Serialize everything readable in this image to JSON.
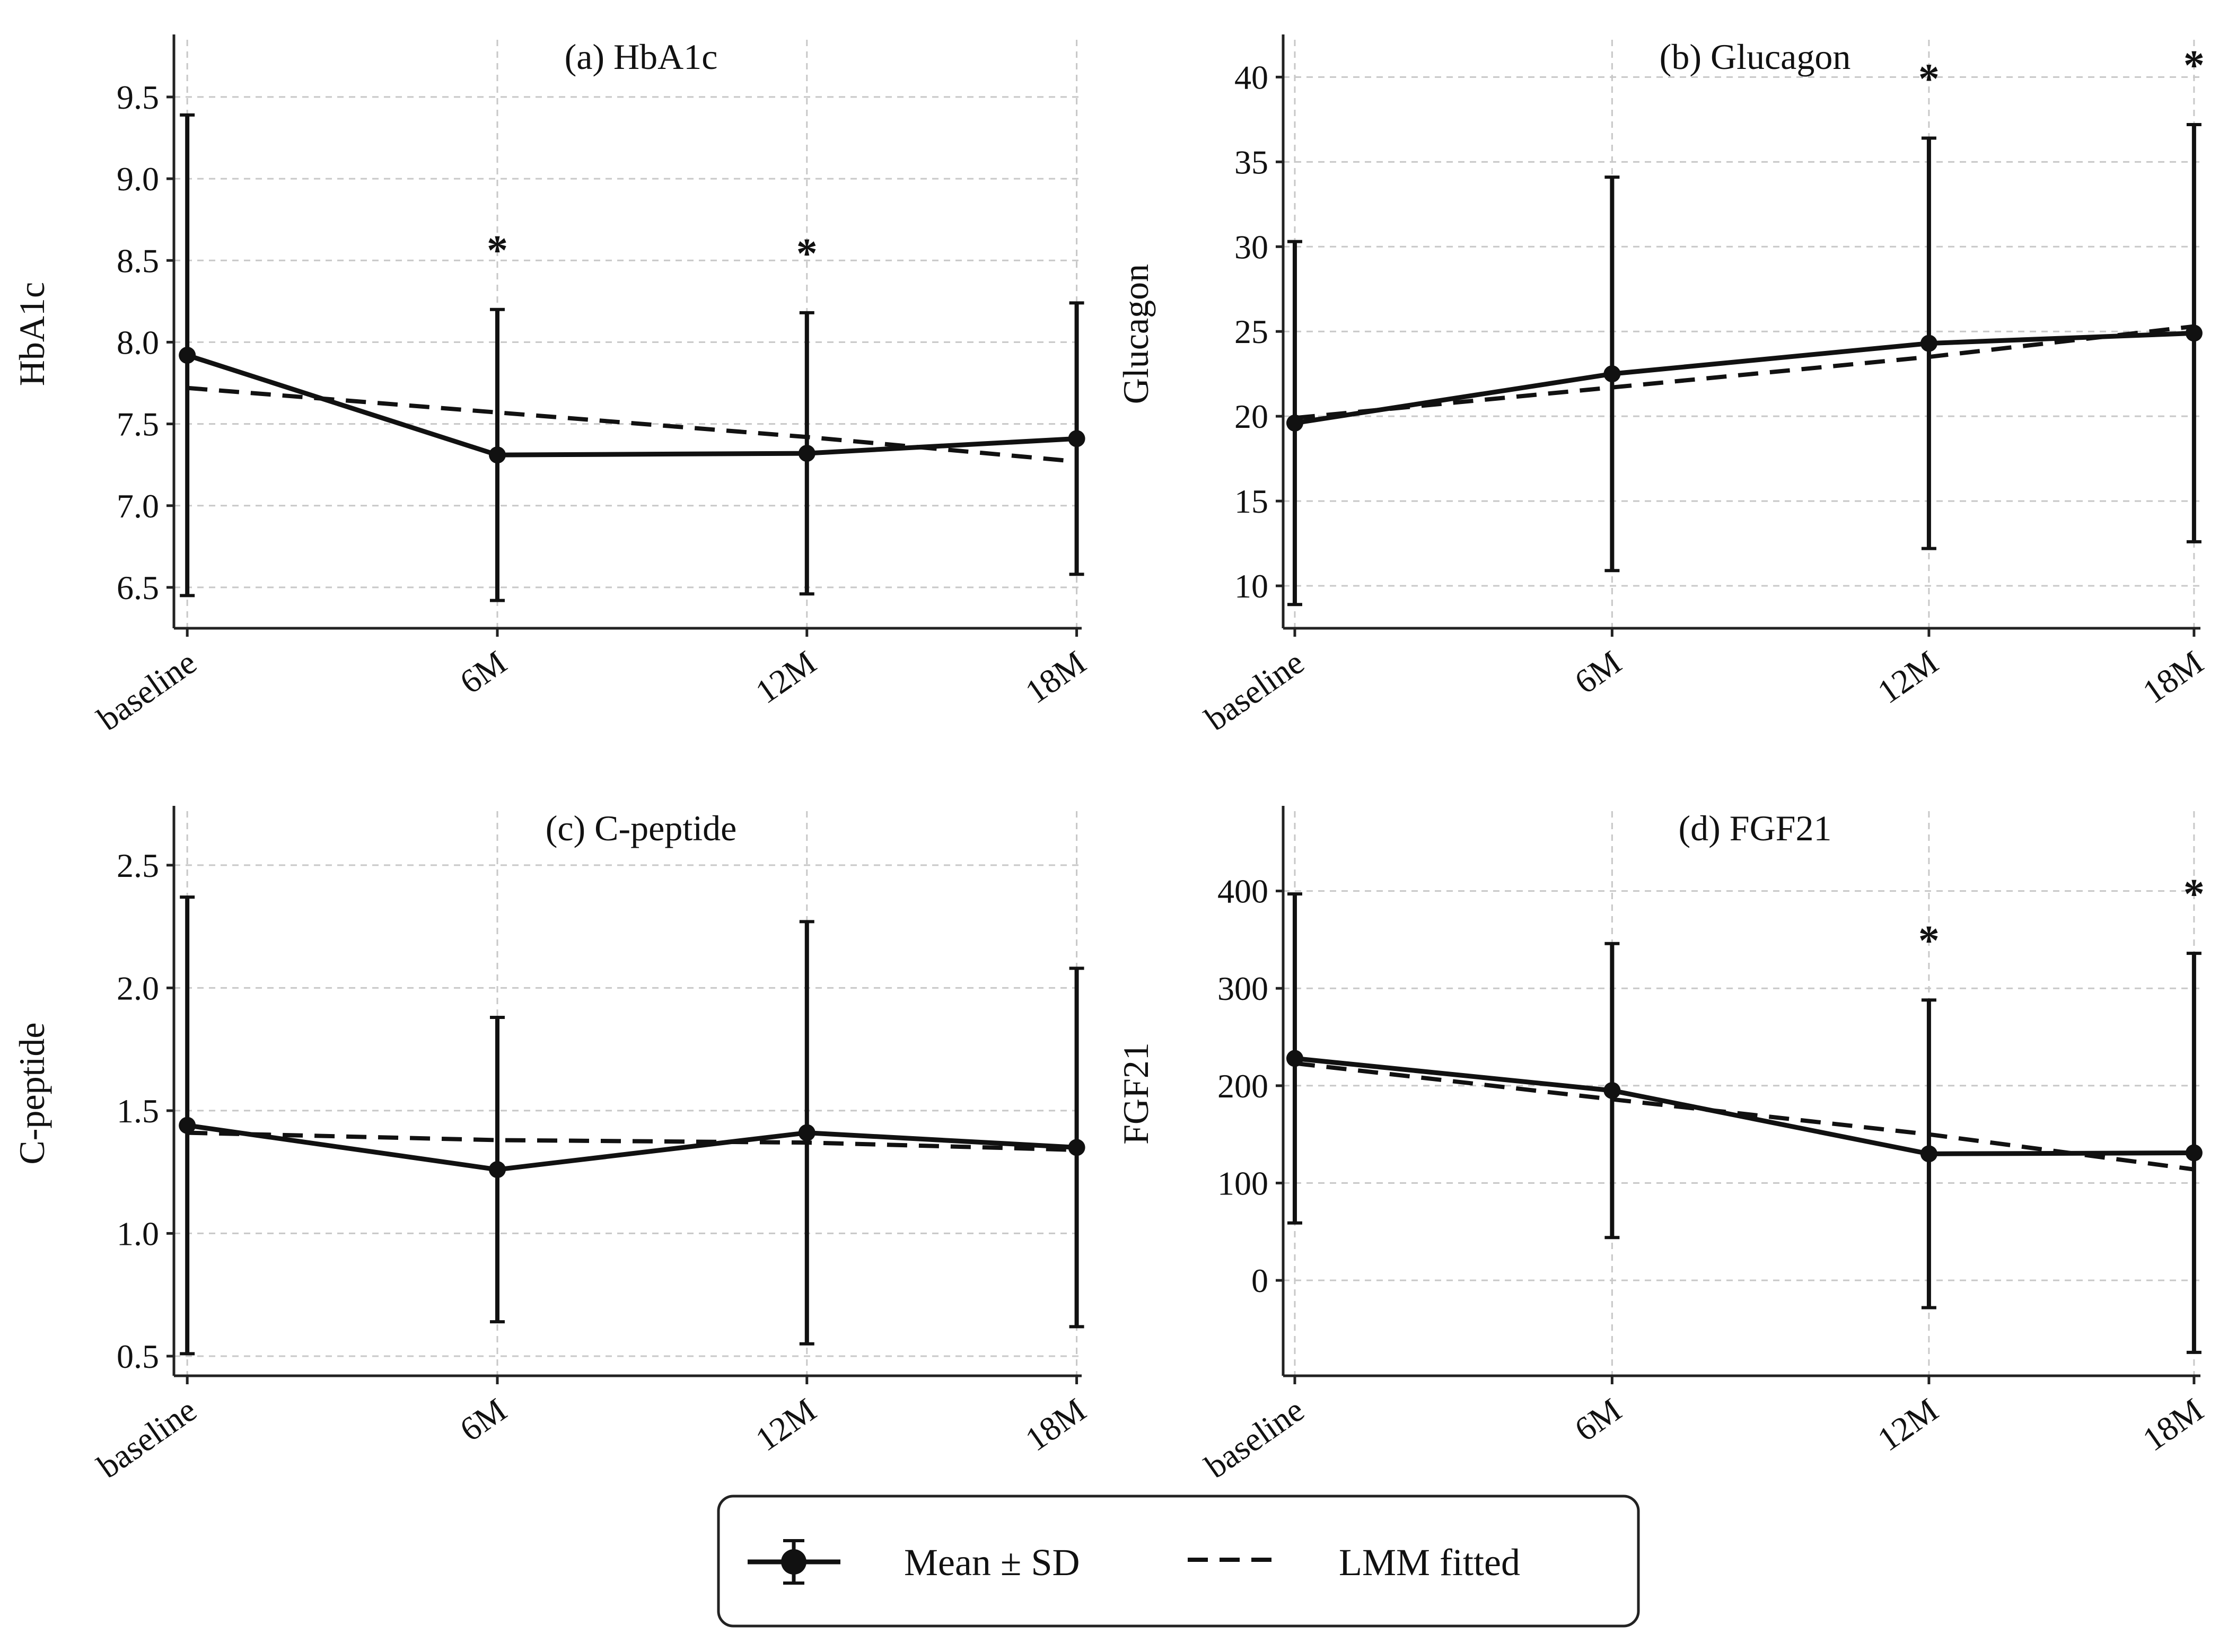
{
  "chart_data": [
    {
      "type": "line",
      "title": "(a) HbA1c",
      "ylabel": "HbA1c",
      "xlabel": "",
      "categories": [
        "baseline",
        "6M",
        "12M",
        "18M"
      ],
      "ylim": [
        6.25,
        9.85
      ],
      "yticks": [
        "6.5",
        "7.0",
        "7.5",
        "8.0",
        "8.5",
        "9.0",
        "9.5"
      ],
      "grid": true,
      "series": [
        {
          "name": "Mean ± SD",
          "values": [
            7.92,
            7.31,
            7.32,
            7.41
          ],
          "sd": [
            1.47,
            0.89,
            0.86,
            0.83
          ]
        },
        {
          "name": "LMM fitted",
          "values": [
            7.72,
            7.57,
            7.42,
            7.27
          ]
        }
      ],
      "significance": [
        "",
        "*",
        "*",
        ""
      ]
    },
    {
      "type": "line",
      "title": "(b) Glucagon",
      "ylabel": "Glucagon",
      "xlabel": "",
      "categories": [
        "baseline",
        "6M",
        "12M",
        "18M"
      ],
      "ylim": [
        7.5,
        42.2
      ],
      "yticks": [
        "10",
        "15",
        "20",
        "25",
        "30",
        "35",
        "40"
      ],
      "grid": true,
      "series": [
        {
          "name": "Mean ± SD",
          "values": [
            19.6,
            22.5,
            24.3,
            24.9
          ],
          "sd": [
            10.7,
            11.6,
            12.1,
            12.3
          ]
        },
        {
          "name": "LMM fitted",
          "values": [
            19.9,
            21.7,
            23.5,
            25.3
          ]
        }
      ],
      "significance": [
        "",
        "",
        "*",
        "*"
      ]
    },
    {
      "type": "line",
      "title": "(c) C-peptide",
      "ylabel": "C-peptide",
      "xlabel": "",
      "categories": [
        "baseline",
        "6M",
        "12M",
        "18M"
      ],
      "ylim": [
        0.42,
        2.72
      ],
      "yticks": [
        "0.5",
        "1.0",
        "1.5",
        "2.0",
        "2.5"
      ],
      "grid": true,
      "series": [
        {
          "name": "Mean ± SD",
          "values": [
            1.44,
            1.26,
            1.41,
            1.35
          ],
          "sd": [
            0.93,
            0.62,
            0.86,
            0.73
          ]
        },
        {
          "name": "LMM fitted",
          "values": [
            1.41,
            1.38,
            1.37,
            1.34
          ]
        }
      ],
      "significance": [
        "",
        "",
        "",
        ""
      ]
    },
    {
      "type": "line",
      "title": "(d) FGF21",
      "ylabel": "FGF21",
      "xlabel": "",
      "categories": [
        "baseline",
        "6M",
        "12M",
        "18M"
      ],
      "ylim": [
        -98,
        482
      ],
      "yticks": [
        "0",
        "100",
        "200",
        "300",
        "400"
      ],
      "grid": true,
      "series": [
        {
          "name": "Mean ± SD",
          "values": [
            228,
            195,
            130,
            131
          ],
          "sd": [
            169,
            151,
            158,
            205
          ]
        },
        {
          "name": "LMM fitted",
          "values": [
            223,
            186,
            150,
            114
          ]
        }
      ],
      "significance": [
        "",
        "",
        "*",
        "*"
      ]
    }
  ],
  "legend": {
    "mean_label": "Mean ± SD",
    "fit_label": "LMM fitted"
  }
}
